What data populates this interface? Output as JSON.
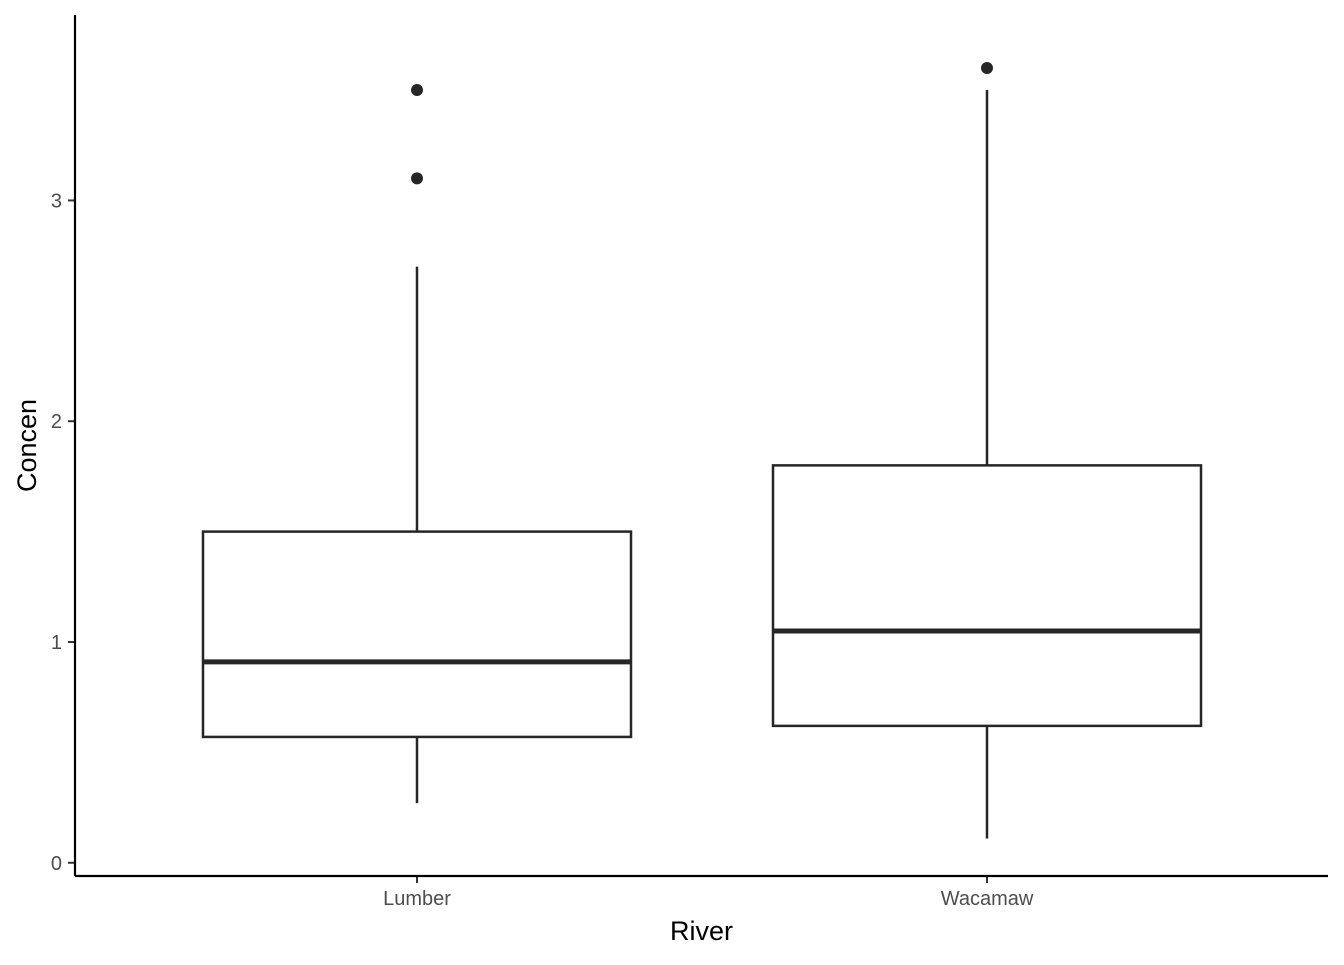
{
  "chart_data": {
    "type": "boxplot",
    "title": "",
    "xlabel": "River",
    "ylabel": "Concen",
    "ylim": [
      -0.06,
      3.84
    ],
    "yticks": [
      0,
      1,
      2,
      3
    ],
    "ytick_labels": [
      "0",
      "1",
      "2",
      "3"
    ],
    "grid": false,
    "legend": "none",
    "categories": [
      "Lumber",
      "Wacamaw"
    ],
    "boxes": [
      {
        "category": "Lumber",
        "whisker_low": 0.27,
        "q1": 0.57,
        "median": 0.91,
        "q3": 1.5,
        "whisker_high": 2.7,
        "outliers": [
          3.1,
          3.5
        ]
      },
      {
        "category": "Wacamaw",
        "whisker_low": 0.11,
        "q1": 0.62,
        "median": 1.05,
        "q3": 1.8,
        "whisker_high": 3.5,
        "outliers": [
          3.6
        ]
      }
    ],
    "colors": {
      "box_line": "#262626",
      "box_fill": "#ffffff",
      "axis": "#000000",
      "tick_text": "#4d4d4d"
    }
  }
}
